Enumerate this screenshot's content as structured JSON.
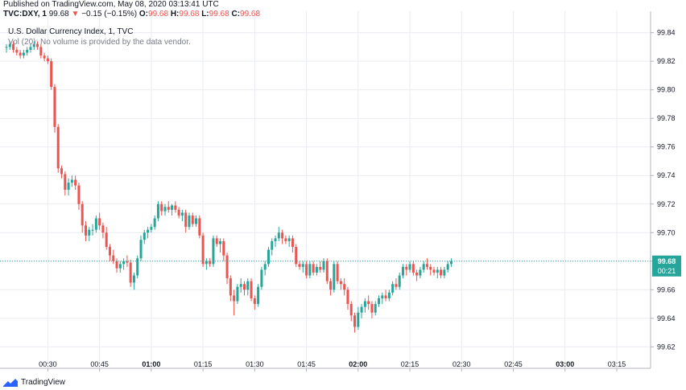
{
  "header": {
    "published": "Published on TradingView.com, May 08, 2020 03:13:41 UTC",
    "symbol": "TVC:DXY, 1",
    "price": "99.68",
    "change": "−0.15 (−0.15%)",
    "o_label": "O:",
    "o_value": "99.68",
    "h_label": "H:",
    "h_value": "99.68",
    "l_label": "L:",
    "l_value": "99.68",
    "c_label": "C:",
    "c_value": "99.68"
  },
  "legend": {
    "title": "U.S. Dollar Currency Index, 1, TVC",
    "volume": "Vol (20): No volume is provided by the data vendor."
  },
  "footer": {
    "brand": "TradingView"
  },
  "price_tag": {
    "price": "99.68",
    "countdown": "00:21"
  },
  "colors": {
    "up": "#26a69a",
    "down": "#ef5350",
    "grid": "#e9ecf1",
    "axis": "#b2b5be"
  },
  "chart_data": {
    "type": "candlestick",
    "title": "U.S. Dollar Currency Index, 1, TVC",
    "ylim": [
      99.605,
      99.855
    ],
    "y_ticks": [
      99.84,
      99.82,
      99.8,
      99.78,
      99.76,
      99.74,
      99.72,
      99.7,
      99.68,
      99.66,
      99.64,
      99.62
    ],
    "y_tick_labels": [
      "99.84",
      "99.82",
      "99.80",
      "99.78",
      "99.76",
      "99.74",
      "99.72",
      "99.70",
      "99.68",
      "99.66",
      "99.64",
      "99.62"
    ],
    "x_range_minutes": [
      17,
      196
    ],
    "x_ticks_minutes": [
      30,
      45,
      60,
      75,
      90,
      105,
      120,
      135,
      150,
      165,
      180,
      195
    ],
    "x_tick_labels": [
      "00:30",
      "00:45",
      "01:00",
      "01:15",
      "01:30",
      "01:45",
      "02:00",
      "02:15",
      "02:30",
      "02:45",
      "03:00",
      "03:15"
    ],
    "x_tick_bold": [
      false,
      false,
      true,
      false,
      false,
      false,
      true,
      false,
      false,
      false,
      true,
      false
    ],
    "last_price": 99.68,
    "grid": true,
    "candles": [
      [
        18,
        99.83,
        99.832,
        99.826,
        99.83
      ],
      [
        19,
        99.83,
        99.834,
        99.828,
        99.832
      ],
      [
        20,
        99.832,
        99.834,
        99.826,
        99.828
      ],
      [
        21,
        99.828,
        99.83,
        99.824,
        99.826
      ],
      [
        22,
        99.826,
        99.828,
        99.822,
        99.824
      ],
      [
        23,
        99.824,
        99.828,
        99.822,
        99.826
      ],
      [
        24,
        99.826,
        99.83,
        99.824,
        99.828
      ],
      [
        25,
        99.828,
        99.832,
        99.826,
        99.83
      ],
      [
        26,
        99.83,
        99.834,
        99.828,
        99.832
      ],
      [
        27,
        99.832,
        99.834,
        99.828,
        99.83
      ],
      [
        28,
        99.83,
        99.832,
        99.822,
        99.824
      ],
      [
        29,
        99.824,
        99.826,
        99.82,
        99.822
      ],
      [
        30,
        99.822,
        99.824,
        99.818,
        99.82
      ],
      [
        31,
        99.82,
        99.822,
        99.8,
        99.802
      ],
      [
        32,
        99.802,
        99.804,
        99.77,
        99.774
      ],
      [
        33,
        99.774,
        99.776,
        99.742,
        99.745
      ],
      [
        34,
        99.745,
        99.747,
        99.738,
        99.741
      ],
      [
        35,
        99.741,
        99.743,
        99.726,
        99.73
      ],
      [
        36,
        99.73,
        99.738,
        99.726,
        99.735
      ],
      [
        37,
        99.735,
        99.74,
        99.732,
        99.737
      ],
      [
        38,
        99.737,
        99.74,
        99.73,
        99.733
      ],
      [
        39,
        99.733,
        99.735,
        99.716,
        99.72
      ],
      [
        40,
        99.72,
        99.722,
        99.7,
        99.705
      ],
      [
        41,
        99.705,
        99.708,
        99.694,
        99.698
      ],
      [
        42,
        99.698,
        99.704,
        99.694,
        99.702
      ],
      [
        43,
        99.702,
        99.706,
        99.698,
        99.702
      ],
      [
        44,
        99.702,
        99.712,
        99.7,
        99.71
      ],
      [
        45,
        99.71,
        99.714,
        99.702,
        99.705
      ],
      [
        46,
        99.705,
        99.707,
        99.696,
        99.7
      ],
      [
        47,
        99.7,
        99.704,
        99.688,
        99.69
      ],
      [
        48,
        99.69,
        99.692,
        99.68,
        99.684
      ],
      [
        49,
        99.684,
        99.688,
        99.678,
        99.68
      ],
      [
        50,
        99.68,
        99.682,
        99.672,
        99.675
      ],
      [
        51,
        99.675,
        99.68,
        99.672,
        99.678
      ],
      [
        52,
        99.678,
        99.682,
        99.674,
        99.68
      ],
      [
        53,
        99.68,
        99.684,
        99.676,
        99.679
      ],
      [
        54,
        99.679,
        99.681,
        99.662,
        99.665
      ],
      [
        55,
        99.665,
        99.672,
        99.66,
        99.67
      ],
      [
        56,
        99.67,
        99.684,
        99.668,
        99.682
      ],
      [
        57,
        99.682,
        99.698,
        99.68,
        99.695
      ],
      [
        58,
        99.695,
        99.702,
        99.692,
        99.7
      ],
      [
        59,
        99.7,
        99.704,
        99.696,
        99.702
      ],
      [
        60,
        99.702,
        99.706,
        99.7,
        99.704
      ],
      [
        61,
        99.704,
        99.712,
        99.702,
        99.71
      ],
      [
        62,
        99.71,
        99.722,
        99.708,
        99.72
      ],
      [
        63,
        99.72,
        99.722,
        99.712,
        99.715
      ],
      [
        64,
        99.715,
        99.72,
        99.712,
        99.718
      ],
      [
        65,
        99.718,
        99.722,
        99.714,
        99.716
      ],
      [
        66,
        99.716,
        99.72,
        99.712,
        99.719
      ],
      [
        67,
        99.719,
        99.722,
        99.714,
        99.716
      ],
      [
        68,
        99.716,
        99.718,
        99.71,
        99.712
      ],
      [
        69,
        99.712,
        99.716,
        99.708,
        99.714
      ],
      [
        70,
        99.714,
        99.716,
        99.7,
        99.704
      ],
      [
        71,
        99.704,
        99.714,
        99.702,
        99.712
      ],
      [
        72,
        99.712,
        99.714,
        99.704,
        99.706
      ],
      [
        73,
        99.706,
        99.712,
        99.704,
        99.71
      ],
      [
        74,
        99.71,
        99.712,
        99.696,
        99.698
      ],
      [
        75,
        99.698,
        99.7,
        99.676,
        99.678
      ],
      [
        76,
        99.678,
        99.682,
        99.674,
        99.68
      ],
      [
        77,
        99.68,
        99.682,
        99.676,
        99.678
      ],
      [
        78,
        99.678,
        99.698,
        99.676,
        99.696
      ],
      [
        79,
        99.696,
        99.698,
        99.69,
        99.692
      ],
      [
        80,
        99.692,
        99.696,
        99.686,
        99.694
      ],
      [
        81,
        99.694,
        99.696,
        99.68,
        99.684
      ],
      [
        82,
        99.684,
        99.686,
        99.664,
        99.668
      ],
      [
        83,
        99.668,
        99.67,
        99.652,
        99.656
      ],
      [
        84,
        99.656,
        99.66,
        99.642,
        99.652
      ],
      [
        85,
        99.652,
        99.664,
        99.65,
        99.662
      ],
      [
        86,
        99.662,
        99.668,
        99.658,
        99.664
      ],
      [
        87,
        99.664,
        99.666,
        99.656,
        99.66
      ],
      [
        88,
        99.66,
        99.668,
        99.656,
        99.666
      ],
      [
        89,
        99.666,
        99.668,
        99.652,
        99.654
      ],
      [
        90,
        99.654,
        99.656,
        99.646,
        99.65
      ],
      [
        91,
        99.65,
        99.664,
        99.648,
        99.662
      ],
      [
        92,
        99.662,
        99.676,
        99.66,
        99.674
      ],
      [
        93,
        99.674,
        99.68,
        99.67,
        99.678
      ],
      [
        94,
        99.678,
        99.69,
        99.676,
        99.688
      ],
      [
        95,
        99.688,
        99.696,
        99.684,
        99.694
      ],
      [
        96,
        99.694,
        99.698,
        99.69,
        99.696
      ],
      [
        97,
        99.696,
        99.704,
        99.694,
        99.7
      ],
      [
        98,
        99.7,
        99.702,
        99.692,
        99.696
      ],
      [
        99,
        99.696,
        99.698,
        99.692,
        99.694
      ],
      [
        100,
        99.694,
        99.698,
        99.69,
        99.696
      ],
      [
        101,
        99.696,
        99.698,
        99.686,
        99.69
      ],
      [
        102,
        99.69,
        99.692,
        99.676,
        99.678
      ],
      [
        103,
        99.678,
        99.68,
        99.674,
        99.676
      ],
      [
        104,
        99.676,
        99.68,
        99.672,
        99.678
      ],
      [
        105,
        99.678,
        99.68,
        99.668,
        99.67
      ],
      [
        106,
        99.67,
        99.68,
        99.668,
        99.678
      ],
      [
        107,
        99.678,
        99.68,
        99.67,
        99.672
      ],
      [
        108,
        99.672,
        99.678,
        99.67,
        99.676
      ],
      [
        109,
        99.676,
        99.68,
        99.672,
        99.674
      ],
      [
        110,
        99.674,
        99.682,
        99.672,
        99.68
      ],
      [
        111,
        99.68,
        99.682,
        99.664,
        99.666
      ],
      [
        112,
        99.666,
        99.668,
        99.656,
        99.66
      ],
      [
        113,
        99.66,
        99.68,
        99.658,
        99.678
      ],
      [
        114,
        99.678,
        99.68,
        99.664,
        99.666
      ],
      [
        115,
        99.666,
        99.668,
        99.66,
        99.664
      ],
      [
        116,
        99.664,
        99.668,
        99.656,
        99.66
      ],
      [
        117,
        99.66,
        99.662,
        99.646,
        99.65
      ],
      [
        118,
        99.65,
        99.652,
        99.638,
        99.642
      ],
      [
        119,
        99.642,
        99.644,
        99.63,
        99.634
      ],
      [
        120,
        99.634,
        99.648,
        99.632,
        99.644
      ],
      [
        121,
        99.644,
        99.65,
        99.64,
        99.648
      ],
      [
        122,
        99.648,
        99.654,
        99.644,
        99.652
      ],
      [
        123,
        99.652,
        99.656,
        99.646,
        99.65
      ],
      [
        124,
        99.65,
        99.652,
        99.64,
        99.644
      ],
      [
        125,
        99.644,
        99.652,
        99.642,
        99.65
      ],
      [
        126,
        99.65,
        99.656,
        99.648,
        99.654
      ],
      [
        127,
        99.654,
        99.658,
        99.65,
        99.656
      ],
      [
        128,
        99.656,
        99.66,
        99.652,
        99.654
      ],
      [
        129,
        99.654,
        99.66,
        99.652,
        99.658
      ],
      [
        130,
        99.658,
        99.666,
        99.656,
        99.664
      ],
      [
        131,
        99.664,
        99.668,
        99.66,
        99.662
      ],
      [
        132,
        99.662,
        99.672,
        99.66,
        99.67
      ],
      [
        133,
        99.67,
        99.678,
        99.668,
        99.676
      ],
      [
        134,
        99.676,
        99.678,
        99.67,
        99.674
      ],
      [
        135,
        99.674,
        99.68,
        99.672,
        99.678
      ],
      [
        136,
        99.678,
        99.68,
        99.67,
        99.672
      ],
      [
        137,
        99.672,
        99.674,
        99.666,
        99.67
      ],
      [
        138,
        99.67,
        99.676,
        99.668,
        99.674
      ],
      [
        139,
        99.674,
        99.68,
        99.672,
        99.678
      ],
      [
        140,
        99.678,
        99.682,
        99.674,
        99.676
      ],
      [
        141,
        99.676,
        99.678,
        99.67,
        99.674
      ],
      [
        142,
        99.674,
        99.676,
        99.67,
        99.672
      ],
      [
        143,
        99.672,
        99.676,
        99.668,
        99.674
      ],
      [
        144,
        99.674,
        99.676,
        99.668,
        99.67
      ],
      [
        145,
        99.67,
        99.676,
        99.668,
        99.674
      ],
      [
        146,
        99.674,
        99.68,
        99.672,
        99.678
      ],
      [
        147,
        99.678,
        99.682,
        99.676,
        99.68
      ]
    ]
  }
}
